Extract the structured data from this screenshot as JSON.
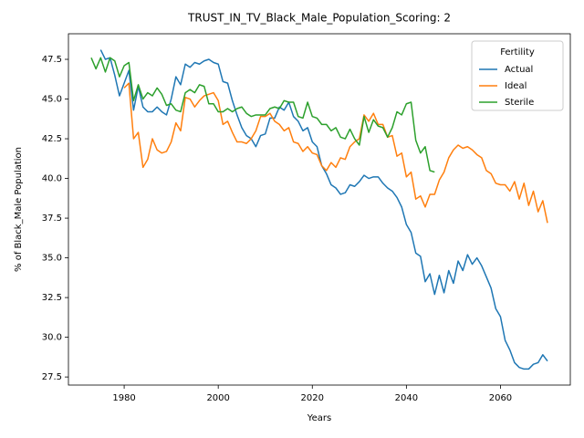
{
  "chart_data": {
    "type": "line",
    "title": "TRUST_IN_TV_Black_Male_Population_Scoring: 2",
    "x_label": "Years",
    "y_label": "% of Black_Male Population",
    "legend_title": "Fertility",
    "legend": "upper right",
    "grid": false,
    "x": [
      1973,
      1974,
      1975,
      1976,
      1977,
      1978,
      1979,
      1980,
      1981,
      1982,
      1983,
      1984,
      1985,
      1986,
      1987,
      1988,
      1989,
      1990,
      1991,
      1992,
      1993,
      1994,
      1995,
      1996,
      1997,
      1998,
      1999,
      2000,
      2001,
      2002,
      2003,
      2004,
      2005,
      2006,
      2007,
      2008,
      2009,
      2010,
      2011,
      2012,
      2013,
      2014,
      2015,
      2016,
      2017,
      2018,
      2019,
      2020,
      2021,
      2022,
      2023,
      2024,
      2025,
      2026,
      2027,
      2028,
      2029,
      2030,
      2031,
      2032,
      2033,
      2034,
      2035,
      2036,
      2037,
      2038,
      2039,
      2040,
      2041,
      2042,
      2043,
      2044,
      2045,
      2046,
      2047,
      2048,
      2049,
      2050,
      2051,
      2052,
      2053,
      2054,
      2055,
      2056,
      2057,
      2058,
      2059,
      2060,
      2061,
      2062,
      2063,
      2064,
      2065,
      2066,
      2067,
      2068,
      2069,
      2070
    ],
    "series": [
      {
        "name": "Actual",
        "color": "#1f77b4",
        "values": [
          null,
          null,
          48.1,
          47.5,
          47.6,
          46.5,
          45.2,
          46.0,
          46.8,
          44.3,
          45.8,
          44.5,
          44.2,
          44.2,
          44.5,
          44.2,
          44.0,
          45.0,
          46.4,
          45.9,
          47.2,
          47.0,
          47.3,
          47.2,
          47.4,
          47.5,
          47.3,
          47.2,
          46.1,
          46.0,
          44.9,
          44.0,
          43.2,
          42.7,
          42.5,
          42.0,
          42.7,
          42.8,
          43.8,
          43.8,
          44.5,
          44.3,
          44.8,
          43.9,
          43.6,
          43.0,
          43.2,
          42.3,
          42.0,
          40.8,
          40.3,
          39.6,
          39.4,
          39.0,
          39.1,
          39.6,
          39.5,
          39.8,
          40.2,
          40.0,
          40.1,
          40.1,
          39.7,
          39.4,
          39.2,
          38.8,
          38.2,
          37.1,
          36.6,
          35.3,
          35.1,
          33.5,
          34.0,
          32.7,
          33.9,
          32.8,
          34.2,
          33.4,
          34.8,
          34.2,
          35.2,
          34.6,
          35.0,
          34.5,
          33.8,
          33.1,
          31.8,
          31.3,
          29.8,
          29.2,
          28.4,
          28.1,
          28.0,
          28.0,
          28.3,
          28.4,
          28.9,
          28.5
        ]
      },
      {
        "name": "Ideal",
        "color": "#ff7f0e",
        "values": [
          null,
          null,
          null,
          null,
          null,
          null,
          null,
          45.7,
          46.0,
          42.5,
          42.9,
          40.7,
          41.2,
          42.5,
          41.8,
          41.6,
          41.7,
          42.3,
          43.5,
          43.0,
          45.1,
          45.0,
          44.5,
          44.9,
          45.2,
          45.3,
          45.4,
          44.9,
          43.4,
          43.6,
          42.9,
          42.3,
          42.3,
          42.2,
          42.5,
          43.0,
          43.9,
          43.9,
          44.1,
          43.6,
          43.4,
          43.0,
          43.2,
          42.3,
          42.2,
          41.7,
          42.0,
          41.6,
          41.5,
          40.8,
          40.5,
          41.0,
          40.7,
          41.3,
          41.2,
          42.0,
          42.3,
          42.5,
          44.0,
          43.6,
          44.1,
          43.4,
          43.4,
          42.6,
          42.7,
          41.4,
          41.6,
          40.1,
          40.4,
          38.7,
          38.9,
          38.2,
          39.0,
          39.0,
          39.9,
          40.4,
          41.3,
          41.8,
          42.1,
          41.9,
          42.0,
          41.8,
          41.5,
          41.3,
          40.5,
          40.3,
          39.7,
          39.6,
          39.6,
          39.2,
          39.8,
          38.7,
          39.7,
          38.3,
          39.2,
          37.9,
          38.6,
          37.2
        ]
      },
      {
        "name": "Sterile",
        "color": "#2ca02c",
        "values": [
          47.6,
          46.9,
          47.6,
          46.7,
          47.6,
          47.4,
          46.4,
          47.1,
          47.3,
          44.9,
          45.9,
          45.0,
          45.4,
          45.2,
          45.7,
          45.3,
          44.6,
          44.7,
          44.3,
          44.2,
          45.4,
          45.6,
          45.4,
          45.9,
          45.8,
          44.7,
          44.7,
          44.2,
          44.2,
          44.4,
          44.2,
          44.4,
          44.5,
          44.1,
          43.9,
          44.0,
          44.0,
          44.0,
          44.4,
          44.5,
          44.4,
          44.9,
          44.8,
          44.8,
          43.9,
          43.8,
          44.8,
          43.9,
          43.8,
          43.4,
          43.4,
          43.0,
          43.2,
          42.6,
          42.5,
          43.1,
          42.5,
          42.1,
          43.9,
          42.9,
          43.7,
          43.3,
          43.2,
          42.6,
          43.2,
          44.2,
          44.0,
          44.7,
          44.8,
          42.4,
          41.6,
          42.0,
          40.5,
          40.4,
          null,
          null,
          null,
          null,
          null,
          null,
          null,
          null,
          null,
          null,
          null,
          null,
          null,
          null,
          null,
          null,
          null,
          null,
          null,
          null,
          null,
          null,
          null,
          null
        ]
      }
    ],
    "xlim": [
      1968.15,
      2074.85
    ],
    "ylim": [
      26.99,
      49.11
    ],
    "xticks": [
      1980,
      2000,
      2020,
      2040,
      2060
    ],
    "yticks": [
      27.5,
      {
        "value": 30,
        "label": "30.0"
      },
      32.5,
      {
        "value": 35,
        "label": "35.0"
      },
      37.5,
      {
        "value": 40,
        "label": "40.0"
      },
      42.5,
      {
        "value": 45,
        "label": "45.0"
      },
      47.5
    ]
  }
}
